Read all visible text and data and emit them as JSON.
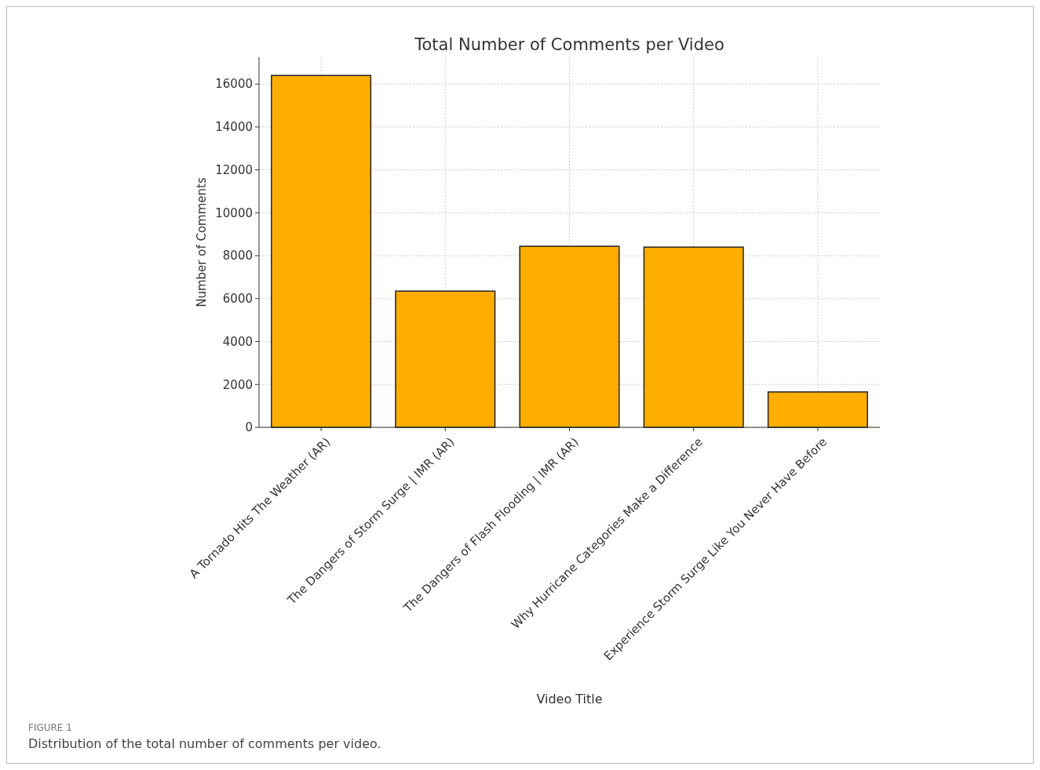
{
  "chart_data": {
    "type": "bar",
    "title": "Total Number of Comments per Video",
    "xlabel": "Video Title",
    "ylabel": "Number of Comments",
    "categories": [
      "A Tornado Hits The Weather (AR)",
      "The Dangers of Storm Surge | IMR (AR)",
      "The Dangers of Flash Flooding | IMR (AR)",
      "Why Hurricane Categories Make a Difference",
      "Experience Storm Surge Like You Never Have Before"
    ],
    "values": [
      16400,
      6350,
      8440,
      8400,
      1650
    ],
    "color": "#ffae00",
    "ylim": [
      0,
      17250
    ],
    "yticks": [
      0,
      2000,
      4000,
      6000,
      8000,
      10000,
      12000,
      14000,
      16000
    ],
    "grid": true,
    "annotations": [
      "FIGURE 1",
      "Distribution of the total number of comments per video."
    ]
  }
}
